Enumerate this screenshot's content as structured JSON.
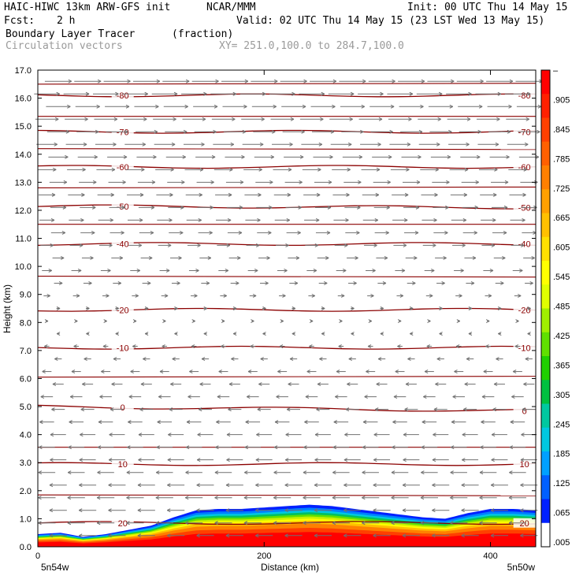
{
  "header": {
    "model": "HAIC-HIWC 13km ARW-GFS init",
    "org": "NCAR/MMM",
    "init": "Init: 00 UTC Thu 14 May 15",
    "fcst_label": "Fcst:",
    "fcst_value": "2 h",
    "valid": "Valid: 02 UTC Thu 14 May 15 (23 LST Wed 13 May 15)",
    "field": "Boundary Layer Tracer",
    "field_units": "(fraction)",
    "overlay": "Circulation vectors",
    "xy": "XY= 251.0,100.0 to 284.7,100.0"
  },
  "chart_data": {
    "type": "heatmap",
    "ylabel": "Height (km)",
    "xlabel": "Distance (km)",
    "ylim": [
      0,
      17
    ],
    "xlim": [
      0,
      440
    ],
    "y_ticks": [
      "0.0",
      "1.0",
      "2.0",
      "3.0",
      "4.0",
      "5.0",
      "6.0",
      "7.0",
      "8.0",
      "9.0",
      "10.0",
      "11.0",
      "12.0",
      "13.0",
      "14.0",
      "15.0",
      "16.0",
      "17.0"
    ],
    "x_ticks": [
      {
        "value": 0,
        "label": "0"
      },
      {
        "value": 200,
        "label": "200"
      },
      {
        "value": 400,
        "label": "400"
      }
    ],
    "x_end_labels": {
      "left": "5n54w",
      "right": "5n50w"
    },
    "colorbar_labels": [
      "–",
      ".905",
      ".845",
      ".785",
      ".725",
      ".665",
      ".605",
      ".545",
      ".485",
      ".425",
      ".365",
      ".305",
      ".245",
      ".185",
      ".125",
      ".065",
      ".005"
    ],
    "colorbar_colors": [
      "#ff0000",
      "#ff2000",
      "#ff4000",
      "#ff6000",
      "#ff8000",
      "#ffa000",
      "#ffc000",
      "#ffe000",
      "#ffff00",
      "#e0ff00",
      "#a0f000",
      "#60e000",
      "#20d000",
      "#00c040",
      "#00c8a0",
      "#00c8e0",
      "#00a0ff",
      "#0060ff",
      "#0020ff",
      "#ffffff"
    ],
    "isotherm_color": "#8b0000",
    "isotherms": [
      {
        "label": "20",
        "y_left": 0.85,
        "y_right": 0.85
      },
      {
        "label": "10",
        "y_left": 2.95,
        "y_right": 2.95
      },
      {
        "label": "0",
        "y_left": 5.0,
        "y_right": 4.85
      },
      {
        "label": "-10",
        "y_left": 7.1,
        "y_right": 7.1
      },
      {
        "label": "-20",
        "y_left": 8.45,
        "y_right": 8.45
      },
      {
        "label": "-40",
        "y_left": 10.8,
        "y_right": 10.8
      },
      {
        "label": "-50",
        "y_left": 12.15,
        "y_right": 12.1
      },
      {
        "label": "-60",
        "y_left": 13.55,
        "y_right": 13.55
      },
      {
        "label": "-70",
        "y_left": 14.8,
        "y_right": 14.8
      },
      {
        "label": "-80",
        "y_left": 16.1,
        "y_right": 16.1
      }
    ],
    "tracer_top_km": [
      [
        0,
        0.45
      ],
      [
        20,
        0.5
      ],
      [
        40,
        0.35
      ],
      [
        60,
        0.45
      ],
      [
        80,
        0.6
      ],
      [
        100,
        0.75
      ],
      [
        120,
        1.05
      ],
      [
        140,
        1.3
      ],
      [
        160,
        1.35
      ],
      [
        180,
        1.35
      ],
      [
        200,
        1.4
      ],
      [
        220,
        1.45
      ],
      [
        240,
        1.5
      ],
      [
        260,
        1.45
      ],
      [
        280,
        1.35
      ],
      [
        300,
        1.25
      ],
      [
        320,
        1.15
      ],
      [
        340,
        1.05
      ],
      [
        360,
        1.0
      ],
      [
        380,
        1.2
      ],
      [
        400,
        1.35
      ],
      [
        420,
        1.35
      ],
      [
        440,
        1.3
      ]
    ],
    "vector_profile": [
      {
        "z": 0.5,
        "u": -1.0
      },
      {
        "z": 1.0,
        "u": -1.0
      },
      {
        "z": 2.0,
        "u": -1.0
      },
      {
        "z": 4.0,
        "u": -0.9
      },
      {
        "z": 6.0,
        "u": -0.6
      },
      {
        "z": 7.5,
        "u": -0.2
      },
      {
        "z": 9.0,
        "u": 0.4
      },
      {
        "z": 11.0,
        "u": 0.8
      },
      {
        "z": 13.0,
        "u": 1.0
      },
      {
        "z": 15.0,
        "u": 1.3
      },
      {
        "z": 17.0,
        "u": 1.6
      }
    ]
  }
}
